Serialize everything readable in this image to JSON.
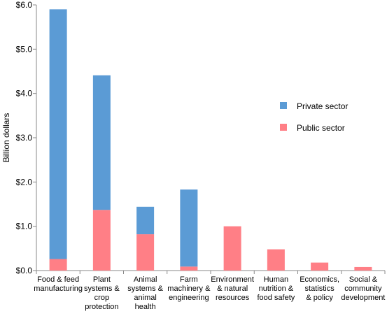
{
  "chart_data": {
    "type": "bar",
    "stacked": true,
    "categories": [
      [
        "Food & feed",
        "manufacturing"
      ],
      [
        "Plant",
        "systems &",
        "crop",
        "protection"
      ],
      [
        "Animal",
        "systems &",
        "animal",
        "health"
      ],
      [
        "Farm",
        "machinery &",
        "engineering"
      ],
      [
        "Environment",
        "& natural",
        "resources"
      ],
      [
        "Human",
        "nutrition &",
        "food safety"
      ],
      [
        "Economics,",
        "statistics",
        "& policy"
      ],
      [
        "Social &",
        "community",
        "development"
      ]
    ],
    "series": [
      {
        "name": "Public sector",
        "color": "#ff7f86",
        "values": [
          0.26,
          1.37,
          0.82,
          0.09,
          1.0,
          0.48,
          0.18,
          0.08
        ]
      },
      {
        "name": "Private sector",
        "color": "#5b9bd5",
        "values": [
          5.64,
          3.04,
          0.62,
          1.74,
          0.0,
          0.0,
          0.0,
          0.0
        ]
      }
    ],
    "ylabel": "Billion dollars",
    "ylim": [
      0,
      6
    ],
    "yticks": [
      "$0.0",
      "$1.0",
      "$2.0",
      "$3.0",
      "$4.0",
      "$5.0",
      "$6.0"
    ],
    "legend": {
      "position": "right",
      "entries": [
        "Private sector",
        "Public sector"
      ]
    },
    "grid": false
  }
}
